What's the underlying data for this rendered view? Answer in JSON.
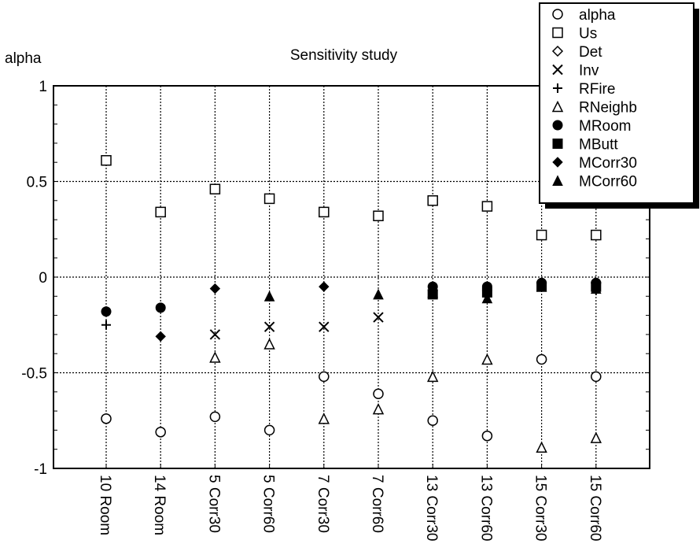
{
  "chart_data": {
    "type": "scatter",
    "title": "Sensitivity study",
    "ylabel": "alpha",
    "xlabel": "",
    "ylim": [
      -1,
      1
    ],
    "yticks": [
      1,
      0.5,
      0,
      -0.5,
      -1
    ],
    "ytick_labels": [
      "1",
      "0.5",
      "0",
      "-0.5",
      "-1"
    ],
    "grid": true,
    "legend_position": "top-right",
    "categories": [
      "10 Room",
      "14 Room",
      "5 Corr30",
      "5 Corr60",
      "7 Corr30",
      "7 Corr60",
      "13 Corr30",
      "13 Corr60",
      "15 Corr30",
      "15 Corr60"
    ],
    "series": [
      {
        "name": "alpha",
        "marker": "circle-open",
        "values": [
          -0.74,
          -0.81,
          -0.73,
          -0.8,
          -0.52,
          -0.61,
          -0.75,
          -0.83,
          -0.43,
          -0.52
        ]
      },
      {
        "name": "Us",
        "marker": "square-open",
        "values": [
          0.61,
          0.34,
          0.46,
          0.41,
          0.34,
          0.32,
          0.4,
          0.37,
          0.22,
          0.22
        ]
      },
      {
        "name": "Det",
        "marker": "diamond-open",
        "values": [
          null,
          null,
          null,
          null,
          null,
          null,
          null,
          null,
          null,
          null
        ]
      },
      {
        "name": "Inv",
        "marker": "cross",
        "values": [
          null,
          null,
          -0.3,
          -0.26,
          -0.26,
          -0.21,
          null,
          null,
          null,
          null
        ]
      },
      {
        "name": "RFire",
        "marker": "plus",
        "values": [
          -0.25,
          null,
          null,
          null,
          null,
          null,
          null,
          null,
          null,
          -0.07
        ]
      },
      {
        "name": "RNeighb",
        "marker": "triangle-open",
        "values": [
          null,
          null,
          -0.42,
          -0.35,
          -0.74,
          -0.69,
          -0.52,
          -0.43,
          -0.89,
          -0.84
        ]
      },
      {
        "name": "MRoom",
        "marker": "circle-filled",
        "values": [
          -0.18,
          -0.16,
          null,
          null,
          null,
          null,
          -0.05,
          -0.05,
          -0.03,
          -0.03
        ]
      },
      {
        "name": "MButt",
        "marker": "square-filled",
        "values": [
          null,
          null,
          null,
          null,
          null,
          null,
          -0.09,
          -0.08,
          -0.05,
          -0.05
        ]
      },
      {
        "name": "MCorr30",
        "marker": "diamond-filled",
        "values": [
          null,
          -0.31,
          -0.06,
          null,
          -0.05,
          null,
          -0.07,
          -0.07,
          -0.03,
          -0.03
        ]
      },
      {
        "name": "MCorr60",
        "marker": "triangle-filled",
        "values": [
          null,
          null,
          null,
          -0.1,
          null,
          -0.09,
          -0.08,
          -0.11,
          -0.05,
          -0.06
        ]
      }
    ]
  }
}
